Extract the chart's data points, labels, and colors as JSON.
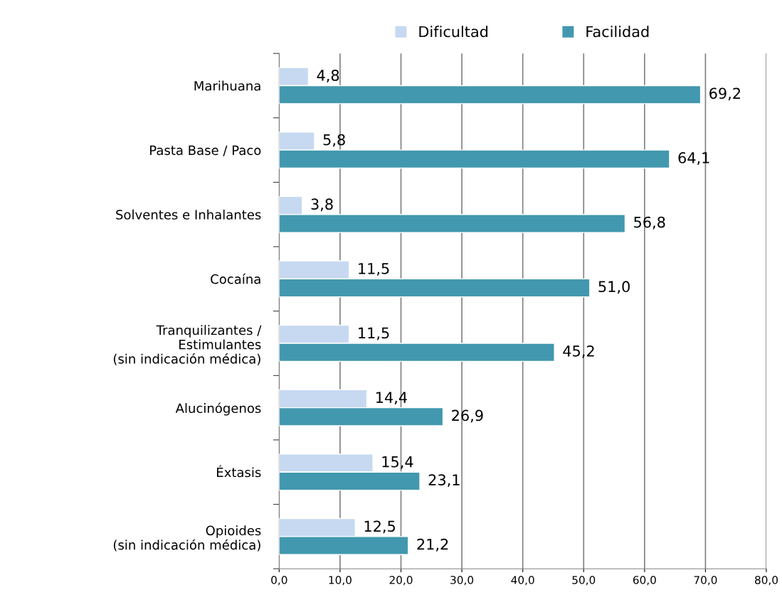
{
  "chart_data": {
    "type": "bar",
    "orientation": "horizontal",
    "categories": [
      "Marihuana",
      "Pasta Base / Paco",
      "Solventes e Inhalantes",
      "Cocaína",
      "Tranquilizantes /\nEstimulantes\n(sin indicación médica)",
      "Alucinógenos",
      "Éxtasis",
      "Opioides\n(sin indicación médica)"
    ],
    "series": [
      {
        "name": "Dificultad",
        "color": "#c6d9f1",
        "values": [
          4.8,
          5.8,
          3.8,
          11.5,
          11.5,
          14.4,
          15.4,
          12.5
        ],
        "value_labels": [
          "4,8",
          "5,8",
          "3,8",
          "11,5",
          "11,5",
          "14,4",
          "15,4",
          "12,5"
        ]
      },
      {
        "name": "Facilidad",
        "color": "#4298ae",
        "values": [
          69.2,
          64.1,
          56.8,
          51.0,
          45.2,
          26.9,
          23.1,
          21.2
        ],
        "value_labels": [
          "69,2",
          "64,1",
          "56,8",
          "51,0",
          "45,2",
          "26,9",
          "23,1",
          "21,2"
        ]
      }
    ],
    "xlim": [
      0,
      80
    ],
    "xticks": [
      {
        "value": 0,
        "label": "0,0"
      },
      {
        "value": 10,
        "label": "10,0"
      },
      {
        "value": 20,
        "label": "20,0"
      },
      {
        "value": 30,
        "label": "30,0"
      },
      {
        "value": 40,
        "label": "40,0"
      },
      {
        "value": 50,
        "label": "50,0"
      },
      {
        "value": 60,
        "label": "60,0"
      },
      {
        "value": 70,
        "label": "70,0"
      },
      {
        "value": 80,
        "label": "80,0"
      }
    ],
    "grid": "x",
    "legend": "top"
  }
}
